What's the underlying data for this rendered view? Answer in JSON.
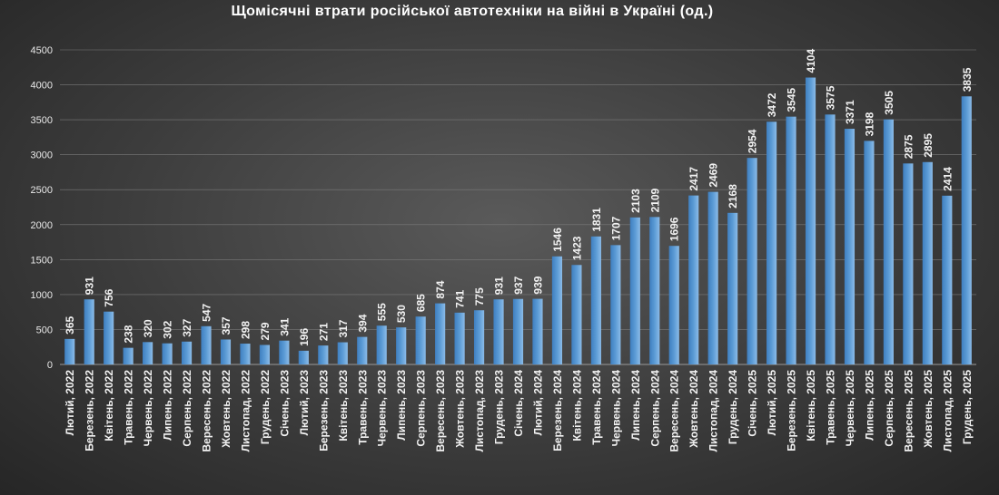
{
  "chart_data": {
    "type": "bar",
    "title": "Щомісячні втрати російської автотехніки на війні в Україні (од.)",
    "xlabel": "",
    "ylabel": "",
    "ylim": [
      0,
      4500
    ],
    "yticks": [
      0,
      500,
      1000,
      1500,
      2000,
      2500,
      3000,
      3500,
      4000,
      4500
    ],
    "grid": true,
    "legend": "none",
    "bar_color": "#5b9bd5",
    "categories": [
      "Лютий, 2022",
      "Березень, 2022",
      "Квітень, 2022",
      "Травень, 2022",
      "Червень, 2022",
      "Липень, 2022",
      "Серпень, 2022",
      "Вересень, 2022",
      "Жовтень, 2022",
      "Листопад, 2022",
      "Грудень, 2022",
      "Січень, 2023",
      "Лютий, 2023",
      "Березень, 2023",
      "Квітень, 2023",
      "Травень, 2023",
      "Червень, 2023",
      "Липень, 2023",
      "Серпень, 2023",
      "Вересень, 2023",
      "Жовтень, 2023",
      "Листопад, 2023",
      "Грудень, 2023",
      "Січень, 2024",
      "Лютий, 2024",
      "Березень, 2024",
      "Квітень, 2024",
      "Травень, 2024",
      "Червень, 2024",
      "Липень, 2024",
      "Серпень, 2024",
      "Вересень, 2024",
      "Жовтень, 2024",
      "Листопад, 2024",
      "Грудень, 2024",
      "Січень, 2025",
      "Лютий, 2025",
      "Березень, 2025",
      "Квітень, 2025",
      "Травень, 2025",
      "Червень, 2025",
      "Липень, 2025",
      "Серпень, 2025",
      "Вересень, 2025",
      "Жовтень, 2025",
      "Листопад, 2025",
      "Грудень, 2025"
    ],
    "values": [
      365,
      931,
      756,
      238,
      320,
      302,
      327,
      547,
      357,
      298,
      279,
      341,
      196,
      271,
      317,
      394,
      555,
      530,
      685,
      874,
      741,
      775,
      931,
      937,
      939,
      1546,
      1423,
      1831,
      1707,
      2103,
      2109,
      1696,
      2417,
      2469,
      2168,
      2954,
      3472,
      3545,
      4104,
      3575,
      3371,
      3198,
      3505,
      2875,
      2895,
      2414,
      3835
    ]
  }
}
